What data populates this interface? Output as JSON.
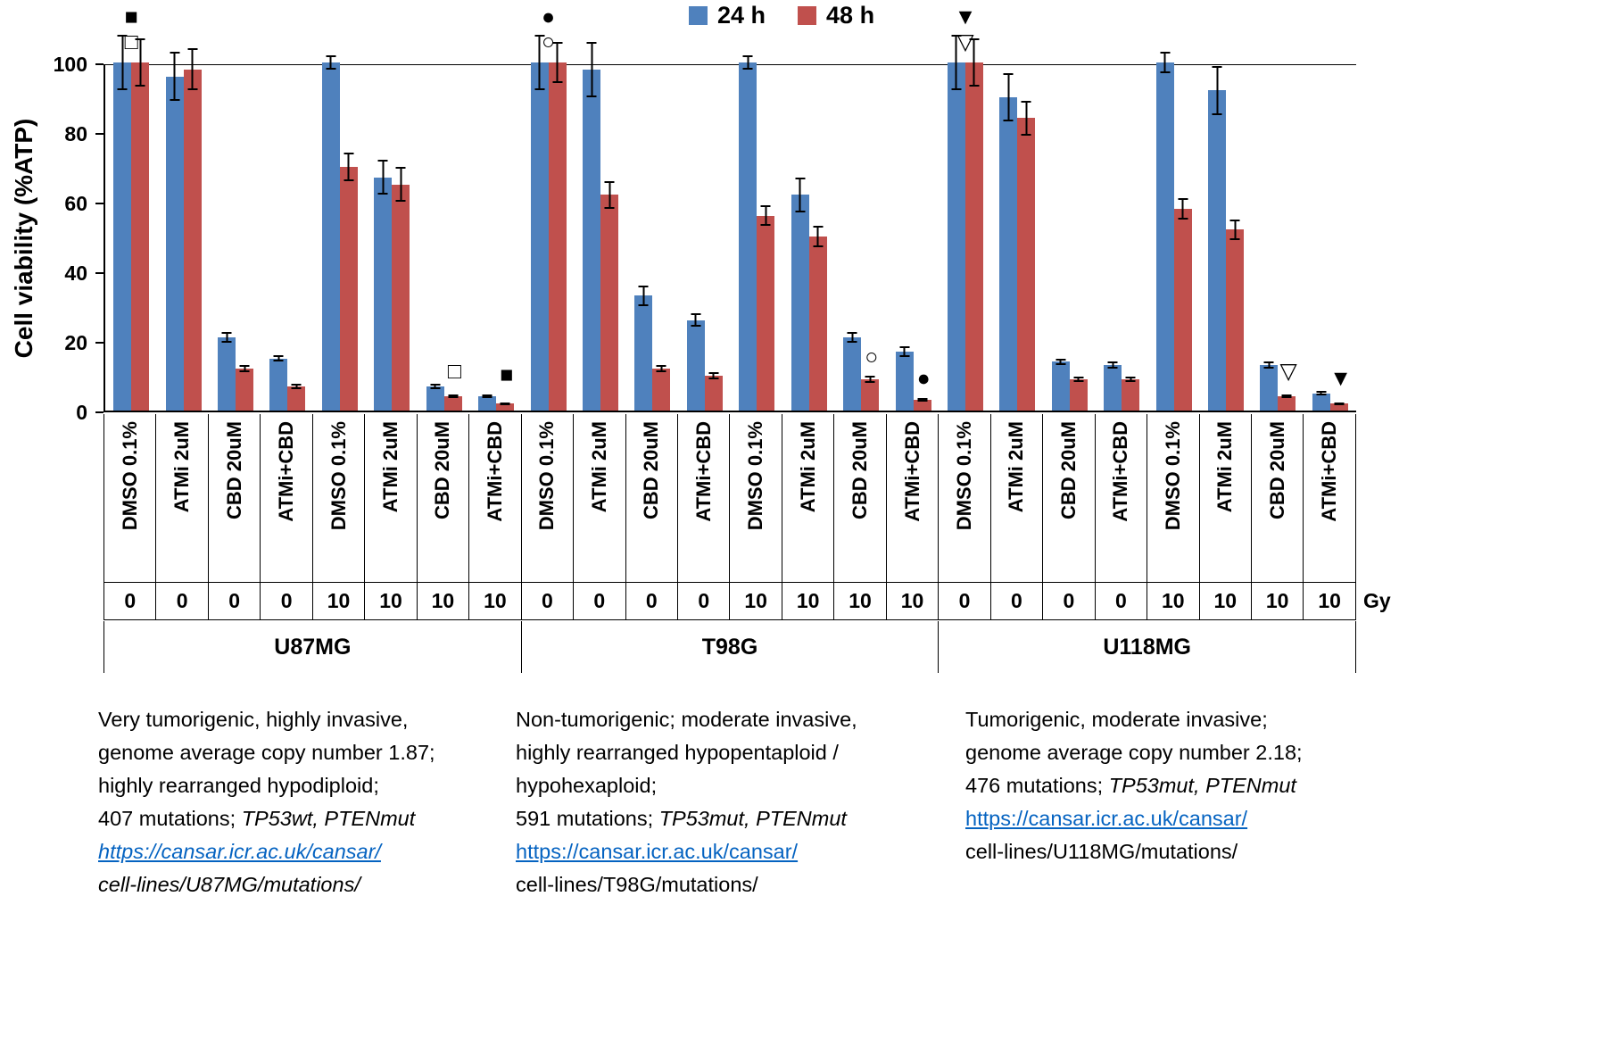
{
  "legend": {
    "items": [
      {
        "label": "24 h",
        "color": "#4f81bd"
      },
      {
        "label": "48 h",
        "color": "#c0504d"
      }
    ]
  },
  "axis": {
    "ylabel": "Cell viability (%ATP)",
    "yticks": [
      0,
      20,
      40,
      60,
      80,
      100
    ],
    "gy_label": "Gy"
  },
  "chart_data": {
    "type": "bar",
    "title": "",
    "ylabel": "Cell viability (%ATP)",
    "ylim": [
      0,
      100
    ],
    "grid": false,
    "legend_position": "top",
    "series": [
      "24 h",
      "48 h"
    ],
    "colors": [
      "#4f81bd",
      "#c0504d"
    ],
    "groups": [
      {
        "name": "U87MG",
        "columns": [
          {
            "treatment": "DMSO 0.1%",
            "gy": "0",
            "values": [
              100,
              100
            ],
            "errors": [
              8,
              7
            ],
            "markers_above": [
              "■",
              "□"
            ]
          },
          {
            "treatment": "ATMi 2uM",
            "gy": "0",
            "values": [
              96,
              98
            ],
            "errors": [
              7,
              6
            ]
          },
          {
            "treatment": "CBD 20uM",
            "gy": "0",
            "values": [
              21,
              12
            ],
            "errors": [
              1.5,
              1
            ]
          },
          {
            "treatment": "ATMi+CBD",
            "gy": "0",
            "values": [
              15,
              7
            ],
            "errors": [
              1,
              0.8
            ]
          },
          {
            "treatment": "DMSO 0.1%",
            "gy": "10",
            "values": [
              100,
              70
            ],
            "errors": [
              2,
              4
            ]
          },
          {
            "treatment": "ATMi 2uM",
            "gy": "10",
            "values": [
              67,
              65
            ],
            "errors": [
              5,
              5
            ]
          },
          {
            "treatment": "CBD 20uM",
            "gy": "10",
            "values": [
              7,
              4
            ],
            "errors": [
              0.8,
              0.5
            ],
            "marker_inplot": {
              "glyph": "□",
              "y": 8
            }
          },
          {
            "treatment": "ATMi+CBD",
            "gy": "10",
            "values": [
              4,
              2
            ],
            "errors": [
              0.5,
              0.4
            ],
            "marker_inplot": {
              "glyph": "■",
              "y": 7
            }
          }
        ]
      },
      {
        "name": "T98G",
        "columns": [
          {
            "treatment": "DMSO 0.1%",
            "gy": "0",
            "values": [
              100,
              100
            ],
            "errors": [
              8,
              6
            ],
            "markers_above": [
              "●",
              "○"
            ]
          },
          {
            "treatment": "ATMi 2uM",
            "gy": "0",
            "values": [
              98,
              62
            ],
            "errors": [
              8,
              4
            ]
          },
          {
            "treatment": "CBD 20uM",
            "gy": "0",
            "values": [
              33,
              12
            ],
            "errors": [
              3,
              1
            ]
          },
          {
            "treatment": "ATMi+CBD",
            "gy": "0",
            "values": [
              26,
              10
            ],
            "errors": [
              2,
              1
            ]
          },
          {
            "treatment": "DMSO 0.1%",
            "gy": "10",
            "values": [
              100,
              56
            ],
            "errors": [
              2,
              3
            ]
          },
          {
            "treatment": "ATMi 2uM",
            "gy": "10",
            "values": [
              62,
              50
            ],
            "errors": [
              5,
              3
            ]
          },
          {
            "treatment": "CBD 20uM",
            "gy": "10",
            "values": [
              21,
              9
            ],
            "errors": [
              1.5,
              1
            ],
            "marker_inplot": {
              "glyph": "○",
              "y": 12
            }
          },
          {
            "treatment": "ATMi+CBD",
            "gy": "10",
            "values": [
              17,
              3
            ],
            "errors": [
              1.5,
              0.5
            ],
            "marker_inplot": {
              "glyph": "●",
              "y": 6
            }
          }
        ]
      },
      {
        "name": "U118MG",
        "columns": [
          {
            "treatment": "DMSO 0.1%",
            "gy": "0",
            "values": [
              100,
              100
            ],
            "errors": [
              8,
              7
            ],
            "markers_above": [
              "▼",
              "▽"
            ]
          },
          {
            "treatment": "ATMi 2uM",
            "gy": "0",
            "values": [
              90,
              84
            ],
            "errors": [
              7,
              5
            ]
          },
          {
            "treatment": "CBD 20uM",
            "gy": "0",
            "values": [
              14,
              9
            ],
            "errors": [
              1,
              0.8
            ]
          },
          {
            "treatment": "ATMi+CBD",
            "gy": "0",
            "values": [
              13,
              9
            ],
            "errors": [
              1,
              0.8
            ]
          },
          {
            "treatment": "DMSO 0.1%",
            "gy": "10",
            "values": [
              100,
              58
            ],
            "errors": [
              3,
              3
            ]
          },
          {
            "treatment": "ATMi 2uM",
            "gy": "10",
            "values": [
              92,
              52
            ],
            "errors": [
              7,
              3
            ]
          },
          {
            "treatment": "CBD 20uM",
            "gy": "10",
            "values": [
              13,
              4
            ],
            "errors": [
              1,
              0.5
            ],
            "marker_inplot": {
              "glyph": "▽",
              "y": 8
            }
          },
          {
            "treatment": "ATMi+CBD",
            "gy": "10",
            "values": [
              5,
              2
            ],
            "errors": [
              0.7,
              0.4
            ],
            "marker_inplot": {
              "glyph": "▼",
              "y": 6
            }
          }
        ]
      }
    ]
  },
  "footnotes": [
    {
      "cell_line": "U87MG",
      "lines": [
        {
          "segs": [
            {
              "t": "Very tumorigenic, highly invasive,"
            }
          ]
        },
        {
          "segs": [
            {
              "t": "genome  average copy number 1.87;"
            }
          ]
        },
        {
          "segs": [
            {
              "t": "highly rearranged hypodiploid;"
            }
          ]
        },
        {
          "segs": [
            {
              "t": "407 mutations; "
            },
            {
              "t": "TP53wt, PTENmut",
              "i": true
            }
          ]
        },
        {
          "segs": [
            {
              "t": "https://cansar.icr.ac.uk/cansar/",
              "link": true,
              "i": true
            }
          ]
        },
        {
          "segs": [
            {
              "t": "cell-lines/U87MG/mutations/",
              "i": true
            }
          ]
        }
      ]
    },
    {
      "cell_line": "T98G",
      "lines": [
        {
          "segs": [
            {
              "t": "Non-tumorigenic; moderate invasive,"
            }
          ]
        },
        {
          "segs": [
            {
              "t": "highly rearranged hypopentaploid /"
            }
          ]
        },
        {
          "segs": [
            {
              "t": "hypohexaploid;"
            }
          ]
        },
        {
          "segs": [
            {
              "t": "591 mutations; "
            },
            {
              "t": "TP53mut, PTENmut",
              "i": true
            }
          ]
        },
        {
          "segs": [
            {
              "t": "https://cansar.icr.ac.uk/cansar/",
              "link": true
            }
          ]
        },
        {
          "segs": [
            {
              "t": "cell-lines/T98G/mutations/"
            }
          ]
        }
      ]
    },
    {
      "cell_line": "U118MG",
      "lines": [
        {
          "segs": [
            {
              "t": "Tumorigenic, moderate invasive;"
            }
          ]
        },
        {
          "segs": [
            {
              "t": "genome average copy number 2.18;"
            }
          ]
        },
        {
          "segs": [
            {
              "t": "476 mutations; "
            },
            {
              "t": "TP53mut, PTENmut",
              "i": true
            }
          ]
        },
        {
          "segs": [
            {
              "t": "https://cansar.icr.ac.uk/cansar/",
              "link": true
            }
          ]
        },
        {
          "segs": [
            {
              "t": "cell-lines/U118MG/mutations/"
            }
          ]
        }
      ]
    }
  ]
}
